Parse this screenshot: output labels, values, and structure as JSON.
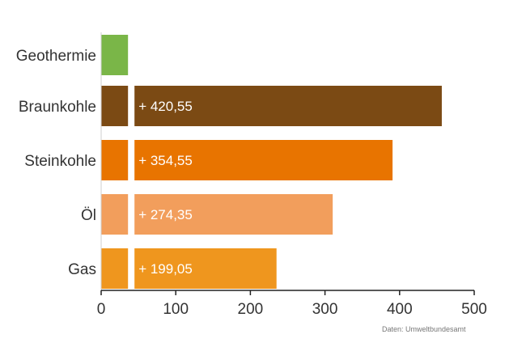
{
  "chart_data": {
    "type": "bar",
    "orientation": "horizontal",
    "categories": [
      "Geothermie",
      "Braunkohle",
      "Steinkohle",
      "Öl",
      "Gas"
    ],
    "base_value": 36,
    "values": [
      36,
      456.55,
      390.55,
      310.35,
      235.05
    ],
    "difference_labels": [
      "",
      "+ 420,55",
      "+ 354,55",
      "+ 274,35",
      "+ 199,05"
    ],
    "colors": [
      "#7ab648",
      "#7b4a14",
      "#e87400",
      "#f29e5c",
      "#ef961e"
    ],
    "xlim": [
      0,
      500
    ],
    "xticks": [
      "0",
      "100",
      "200",
      "300",
      "400",
      "500"
    ],
    "xlabel": "",
    "ylabel": "",
    "source": "Daten: Umweltbundesamt",
    "grid": false
  }
}
